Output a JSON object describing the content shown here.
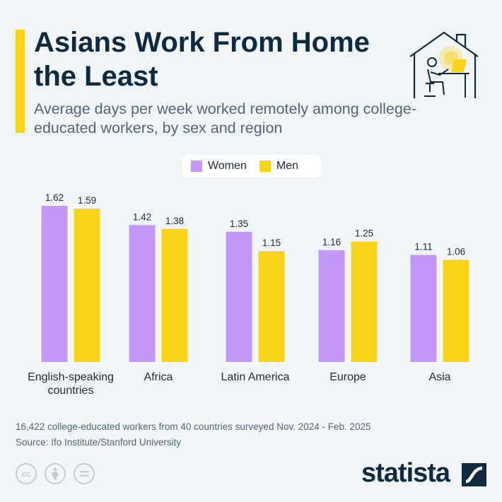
{
  "header": {
    "title": "Asians Work From Home the Least",
    "subtitle": "Average days per week worked remotely among college-educated workers, by sex and region"
  },
  "legend": [
    {
      "label": "Women",
      "color": "#c396f7"
    },
    {
      "label": "Men",
      "color": "#f9d318"
    }
  ],
  "chart_data": {
    "type": "bar",
    "categories": [
      "English-speaking countries",
      "Africa",
      "Latin America",
      "Europe",
      "Asia"
    ],
    "series": [
      {
        "name": "Women",
        "values": [
          1.62,
          1.42,
          1.35,
          1.16,
          1.11
        ],
        "color": "#c396f7"
      },
      {
        "name": "Men",
        "values": [
          1.59,
          1.38,
          1.15,
          1.25,
          1.06
        ],
        "color": "#f9d318"
      }
    ],
    "value_labels": true,
    "grid": false,
    "legend_position": "top-center"
  },
  "footer": {
    "note": "16,422 college-educated workers from 40 countries surveyed Nov. 2024 - Feb. 2025",
    "source": "Source: Ifo Institute/Stanford University",
    "brand": "statista",
    "license_icons": [
      "cc-icon",
      "attribution-icon",
      "no-derivatives-icon"
    ]
  },
  "colors": {
    "accent": "#f9d318",
    "title": "#0f2a40",
    "subtitle": "#52667a",
    "background": "#f1f5f7"
  }
}
